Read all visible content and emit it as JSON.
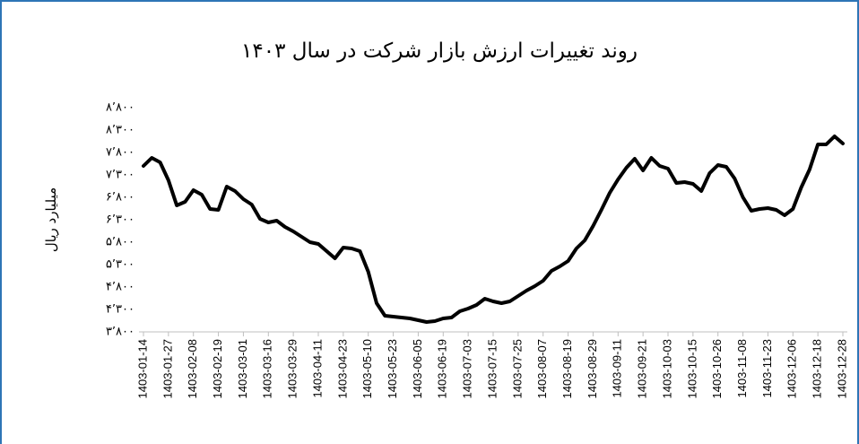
{
  "chart_data": {
    "type": "line",
    "title": "روند تغییرات ارزش بازار شرکت در سال ۱۴۰۳",
    "y_label": "میلیارد ریال",
    "categories": [
      "1403-01-14",
      null,
      null,
      "1403-01-27",
      null,
      null,
      "1403-02-08",
      null,
      null,
      "1403-02-19",
      null,
      null,
      "1403-03-01",
      null,
      null,
      "1403-03-16",
      null,
      null,
      "1403-03-29",
      null,
      null,
      "1403-04-11",
      null,
      null,
      "1403-04-23",
      null,
      null,
      "1403-05-10",
      null,
      null,
      "1403-05-23",
      null,
      null,
      "1403-06-05",
      null,
      null,
      "1403-06-19",
      null,
      null,
      "1403-07-03",
      null,
      null,
      "1403-07-15",
      null,
      null,
      "1403-07-25",
      null,
      null,
      "1403-08-07",
      null,
      null,
      "1403-08-19",
      null,
      null,
      "1403-08-29",
      null,
      null,
      "1403-09-11",
      null,
      null,
      "1403-09-21",
      null,
      null,
      "1403-10-03",
      null,
      null,
      "1403-10-15",
      null,
      null,
      "1403-10-26",
      null,
      null,
      "1403-11-08",
      null,
      null,
      "1403-11-23",
      null,
      null,
      "1403-12-06",
      null,
      null,
      "1403-12-18",
      null,
      null,
      "1403-12-28"
    ],
    "values": [
      7500,
      7680,
      7580,
      7180,
      6620,
      6700,
      6960,
      6860,
      6540,
      6520,
      7040,
      6940,
      6760,
      6640,
      6320,
      6240,
      6280,
      6140,
      6040,
      5920,
      5800,
      5760,
      5600,
      5440,
      5680,
      5660,
      5600,
      5140,
      4440,
      4160,
      4140,
      4120,
      4100,
      4060,
      4020,
      4040,
      4100,
      4120,
      4260,
      4320,
      4400,
      4540,
      4480,
      4440,
      4480,
      4600,
      4720,
      4820,
      4940,
      5160,
      5260,
      5380,
      5660,
      5840,
      6160,
      6520,
      6900,
      7200,
      7460,
      7660,
      7400,
      7680,
      7500,
      7440,
      7120,
      7140,
      7100,
      6940,
      7340,
      7520,
      7480,
      7220,
      6800,
      6500,
      6540,
      6560,
      6520,
      6400,
      6540,
      7020,
      7420,
      7980,
      7980,
      8160,
      8000
    ],
    "color": "#000000",
    "ylim": [
      3800,
      8800
    ],
    "yticks": [
      {
        "value": 3800,
        "label": "۳٬۸۰۰"
      },
      {
        "value": 4300,
        "label": "۴٬۳۰۰"
      },
      {
        "value": 4800,
        "label": "۴٬۸۰۰"
      },
      {
        "value": 5300,
        "label": "۵٬۳۰۰"
      },
      {
        "value": 5800,
        "label": "۵٬۸۰۰"
      },
      {
        "value": 6300,
        "label": "۶٬۳۰۰"
      },
      {
        "value": 6800,
        "label": "۶٬۸۰۰"
      },
      {
        "value": 7300,
        "label": "۷٬۳۰۰"
      },
      {
        "value": 7800,
        "label": "۷٬۸۰۰"
      },
      {
        "value": 8300,
        "label": "۸٬۳۰۰"
      },
      {
        "value": 8800,
        "label": "۸٬۸۰۰"
      }
    ],
    "grid": false
  }
}
